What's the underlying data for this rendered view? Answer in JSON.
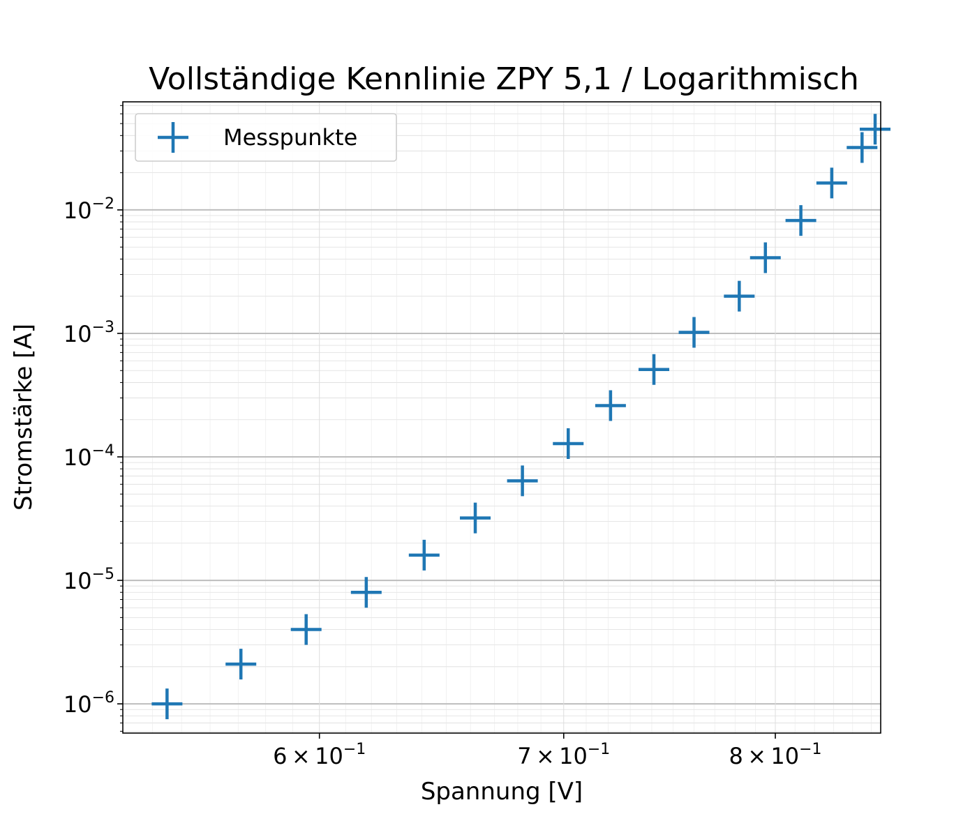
{
  "chart_data": {
    "type": "scatter",
    "title": "Vollständige Kennlinie ZPY 5,1 / Logarithmisch",
    "xlabel": "Spannung [V]",
    "ylabel": "Stromstärke [A]",
    "xscale": "log",
    "yscale": "log",
    "xlim": [
      0.53,
      0.855
    ],
    "ylim": [
      5.8e-07,
      0.075
    ],
    "x_major_ticks": [
      {
        "value": 0.6,
        "mantissa": "6",
        "times": "×",
        "base": "10",
        "exp": "−1"
      },
      {
        "value": 0.7,
        "mantissa": "7",
        "times": "×",
        "base": "10",
        "exp": "−1"
      },
      {
        "value": 0.8,
        "mantissa": "8",
        "times": "×",
        "base": "10",
        "exp": "−1"
      }
    ],
    "y_major_ticks": [
      {
        "value": 1e-06,
        "base": "10",
        "exp": "−6"
      },
      {
        "value": 1e-05,
        "base": "10",
        "exp": "−5"
      },
      {
        "value": 0.0001,
        "base": "10",
        "exp": "−4"
      },
      {
        "value": 0.001,
        "base": "10",
        "exp": "−3"
      },
      {
        "value": 0.01,
        "base": "10",
        "exp": "−2"
      }
    ],
    "grid": "both",
    "legend": {
      "position": "top-left",
      "label": "Messpunkte"
    },
    "marker": "+",
    "series": [
      {
        "name": "Messpunkte",
        "color": "#1f77b4",
        "points": [
          {
            "x": 0.545,
            "y": 1e-06
          },
          {
            "x": 0.571,
            "y": 2.1e-06
          },
          {
            "x": 0.595,
            "y": 4e-06
          },
          {
            "x": 0.618,
            "y": 8e-06
          },
          {
            "x": 0.641,
            "y": 1.6e-05
          },
          {
            "x": 0.662,
            "y": 3.2e-05
          },
          {
            "x": 0.682,
            "y": 6.4e-05
          },
          {
            "x": 0.702,
            "y": 0.000128
          },
          {
            "x": 0.721,
            "y": 0.00026
          },
          {
            "x": 0.741,
            "y": 0.00051
          },
          {
            "x": 0.76,
            "y": 0.00102
          },
          {
            "x": 0.782,
            "y": 0.002
          },
          {
            "x": 0.795,
            "y": 0.0041
          },
          {
            "x": 0.813,
            "y": 0.0082
          },
          {
            "x": 0.829,
            "y": 0.0165
          },
          {
            "x": 0.845,
            "y": 0.032
          },
          {
            "x": 0.852,
            "y": 0.045
          }
        ]
      }
    ]
  }
}
